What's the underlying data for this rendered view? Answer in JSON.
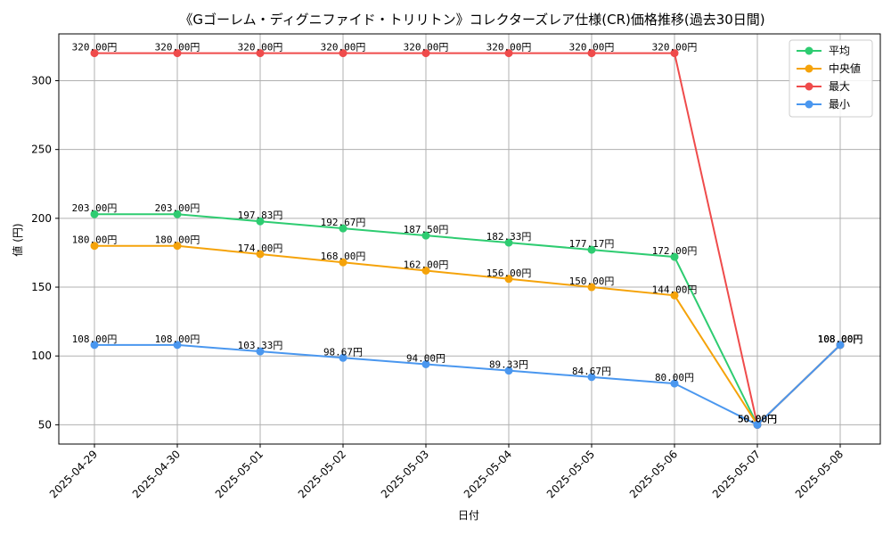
{
  "chart_data": {
    "type": "line",
    "title": "《Gゴーレム・ディグニファイド・トリリトン》コレクターズレア仕様(CR)価格推移(過去30日間)",
    "xlabel": "日付",
    "ylabel": "値 (円)",
    "ylim": [
      36,
      334
    ],
    "yticks": [
      50,
      100,
      150,
      200,
      250,
      300
    ],
    "grid": true,
    "legend_position": "top-right",
    "label_suffix": "円",
    "categories": [
      "2025-04-29",
      "2025-04-30",
      "2025-05-01",
      "2025-05-02",
      "2025-05-03",
      "2025-05-04",
      "2025-05-05",
      "2025-05-06",
      "2025-05-07",
      "2025-05-08"
    ],
    "series": [
      {
        "name": "平均",
        "color": "#2ecc71",
        "values": [
          203.0,
          203.0,
          197.83,
          192.67,
          187.5,
          182.33,
          177.17,
          172.0,
          50.0,
          108.0
        ]
      },
      {
        "name": " 中央値",
        "color": "#f5a30a",
        "values": [
          180.0,
          180.0,
          174.0,
          168.0,
          162.0,
          156.0,
          150.0,
          144.0,
          50.0,
          108.0
        ]
      },
      {
        "name": "最大",
        "color": "#ef4b4b",
        "values": [
          320.0,
          320.0,
          320.0,
          320.0,
          320.0,
          320.0,
          320.0,
          320.0,
          50.0,
          108.0
        ]
      },
      {
        "name": "最小",
        "color": "#4a97ef",
        "values": [
          108.0,
          108.0,
          103.33,
          98.67,
          94.0,
          89.33,
          84.67,
          80.0,
          50.0,
          108.0
        ]
      }
    ]
  }
}
